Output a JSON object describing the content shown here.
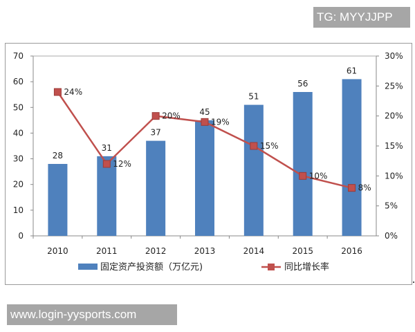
{
  "watermarks": {
    "top": "TG: MYYJJPP",
    "bottom": "www.login-yysports.com"
  },
  "chart_data": {
    "type": "bar+line",
    "categories": [
      "2010",
      "2011",
      "2012",
      "2013",
      "2014",
      "2015",
      "2016"
    ],
    "series": [
      {
        "name": "固定资产投资额（万亿元)",
        "type": "bar",
        "axis": "left",
        "color": "#4f81bd",
        "values": [
          28,
          31,
          37,
          45,
          51,
          56,
          61
        ],
        "labels": [
          "28",
          "31",
          "37",
          "45",
          "51",
          "56",
          "61"
        ]
      },
      {
        "name": "同比增长率",
        "type": "line",
        "axis": "right",
        "color": "#c0504d",
        "values": [
          24,
          12,
          20,
          19,
          15,
          10,
          8
        ],
        "labels": [
          "24%",
          "12%",
          "20%",
          "19%",
          "15%",
          "10%",
          "8%"
        ]
      }
    ],
    "left_axis": {
      "ylim": [
        0,
        70
      ],
      "ticks": [
        "0",
        "10",
        "20",
        "30",
        "40",
        "50",
        "60",
        "70"
      ]
    },
    "right_axis": {
      "ylim": [
        0,
        30
      ],
      "ticks": [
        "0%",
        "5%",
        "10%",
        "15%",
        "20%",
        "25%",
        "30%"
      ]
    },
    "grid": false,
    "legend": "bottom"
  }
}
